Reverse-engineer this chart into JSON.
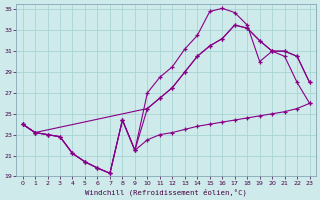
{
  "xlabel": "Windchill (Refroidissement éolien,°C)",
  "bg_color": "#ceeaea",
  "grid_color": "#a8d4d4",
  "line_color": "#880088",
  "xlim": [
    -0.5,
    23.5
  ],
  "ylim": [
    19,
    35.5
  ],
  "xticks": [
    0,
    1,
    2,
    3,
    4,
    5,
    6,
    7,
    8,
    9,
    10,
    11,
    12,
    13,
    14,
    15,
    16,
    17,
    18,
    19,
    20,
    21,
    22,
    23
  ],
  "yticks": [
    19,
    21,
    23,
    25,
    27,
    29,
    31,
    33,
    35
  ],
  "curve1_x": [
    0,
    1,
    2,
    3,
    4,
    5,
    6,
    7,
    8,
    9,
    10,
    11,
    12,
    13,
    14,
    15,
    16,
    17,
    18,
    19,
    20,
    21,
    22,
    23
  ],
  "curve1_y": [
    24.0,
    23.2,
    23.0,
    22.8,
    21.2,
    20.4,
    19.8,
    19.3,
    24.4,
    21.5,
    27.0,
    28.5,
    29.5,
    31.2,
    32.5,
    34.8,
    35.1,
    34.7,
    33.5,
    30.0,
    31.0,
    30.5,
    28.0,
    26.0
  ],
  "curve2_x": [
    0,
    1,
    2,
    3,
    4,
    5,
    6,
    7,
    8,
    9,
    10,
    11,
    12,
    13,
    14,
    15,
    16,
    17,
    18,
    19,
    20,
    21,
    22,
    23
  ],
  "curve2_y": [
    24.0,
    23.2,
    23.0,
    22.8,
    21.2,
    20.4,
    19.8,
    19.3,
    24.4,
    21.5,
    25.5,
    26.5,
    27.5,
    29.0,
    30.5,
    31.5,
    32.2,
    33.5,
    33.2,
    32.0,
    31.0,
    31.0,
    30.5,
    28.0
  ],
  "curve3_x": [
    0,
    1,
    10,
    11,
    12,
    13,
    14,
    15,
    16,
    17,
    18,
    19,
    20,
    21,
    22,
    23
  ],
  "curve3_y": [
    24.0,
    23.2,
    25.5,
    26.5,
    27.5,
    29.0,
    30.5,
    31.5,
    32.2,
    33.5,
    33.2,
    32.0,
    31.0,
    31.0,
    30.5,
    28.0
  ],
  "curve4_x": [
    0,
    1,
    2,
    3,
    4,
    5,
    6,
    7,
    8,
    9,
    10,
    11,
    12,
    13,
    14,
    15,
    16,
    17,
    18,
    19,
    20,
    21,
    22,
    23
  ],
  "curve4_y": [
    24.0,
    23.2,
    23.0,
    22.8,
    21.2,
    20.4,
    19.8,
    19.3,
    24.4,
    21.5,
    22.5,
    23.0,
    23.2,
    23.5,
    23.8,
    24.0,
    24.2,
    24.4,
    24.6,
    24.8,
    25.0,
    25.2,
    25.5,
    26.0
  ]
}
